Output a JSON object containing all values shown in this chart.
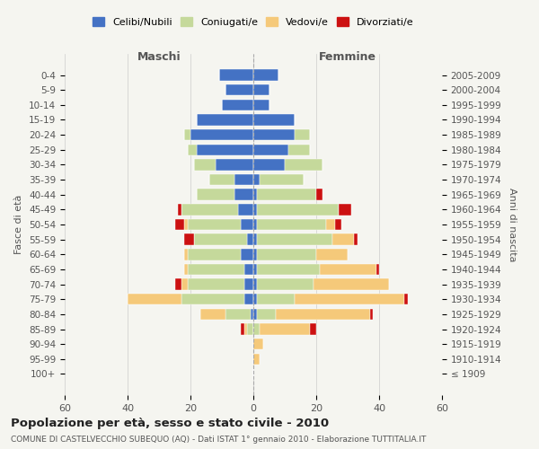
{
  "age_groups": [
    "100+",
    "95-99",
    "90-94",
    "85-89",
    "80-84",
    "75-79",
    "70-74",
    "65-69",
    "60-64",
    "55-59",
    "50-54",
    "45-49",
    "40-44",
    "35-39",
    "30-34",
    "25-29",
    "20-24",
    "15-19",
    "10-14",
    "5-9",
    "0-4"
  ],
  "birth_years": [
    "≤ 1909",
    "1910-1914",
    "1915-1919",
    "1920-1924",
    "1925-1929",
    "1930-1934",
    "1935-1939",
    "1940-1944",
    "1945-1949",
    "1950-1954",
    "1955-1959",
    "1960-1964",
    "1965-1969",
    "1970-1974",
    "1975-1979",
    "1980-1984",
    "1985-1989",
    "1990-1994",
    "1995-1999",
    "2000-2004",
    "2005-2009"
  ],
  "maschi": {
    "celibi": [
      0,
      0,
      0,
      0,
      1,
      3,
      3,
      3,
      4,
      2,
      4,
      5,
      6,
      6,
      12,
      18,
      20,
      18,
      10,
      9,
      11
    ],
    "coniugati": [
      0,
      0,
      0,
      2,
      8,
      20,
      18,
      18,
      17,
      17,
      17,
      18,
      12,
      8,
      7,
      3,
      2,
      0,
      0,
      0,
      0
    ],
    "vedovi": [
      0,
      0,
      0,
      1,
      8,
      17,
      2,
      1,
      1,
      0,
      1,
      0,
      0,
      0,
      0,
      0,
      0,
      0,
      0,
      0,
      0
    ],
    "divorziati": [
      0,
      0,
      0,
      1,
      0,
      0,
      2,
      0,
      0,
      3,
      3,
      1,
      0,
      0,
      0,
      0,
      0,
      0,
      0,
      0,
      0
    ]
  },
  "femmine": {
    "nubili": [
      0,
      0,
      0,
      0,
      1,
      1,
      1,
      1,
      1,
      1,
      1,
      1,
      1,
      2,
      10,
      11,
      13,
      13,
      5,
      5,
      8
    ],
    "coniugate": [
      0,
      0,
      0,
      2,
      6,
      12,
      18,
      20,
      19,
      24,
      22,
      26,
      19,
      14,
      12,
      7,
      5,
      0,
      0,
      0,
      0
    ],
    "vedove": [
      0,
      2,
      3,
      16,
      30,
      35,
      24,
      18,
      10,
      7,
      3,
      0,
      0,
      0,
      0,
      0,
      0,
      0,
      0,
      0,
      0
    ],
    "divorziate": [
      0,
      0,
      0,
      2,
      1,
      1,
      0,
      1,
      0,
      1,
      2,
      4,
      2,
      0,
      0,
      0,
      0,
      0,
      0,
      0,
      0
    ]
  },
  "colors": {
    "celibi": "#4472C4",
    "coniugati": "#c5d99b",
    "vedovi": "#f5c97a",
    "divorziati": "#cc1111"
  },
  "title": "Popolazione per età, sesso e stato civile - 2010",
  "subtitle": "COMUNE DI CASTELVECCHIO SUBEQUO (AQ) - Dati ISTAT 1° gennaio 2010 - Elaborazione TUTTITALIA.IT",
  "xlabel_left": "Maschi",
  "xlabel_right": "Femmine",
  "ylabel_left": "Fasce di età",
  "ylabel_right": "Anni di nascita",
  "xlim": 60,
  "background_color": "#f5f5f0",
  "legend_labels": [
    "Celibi/Nubili",
    "Coniugati/e",
    "Vedovi/e",
    "Divorziati/e"
  ]
}
